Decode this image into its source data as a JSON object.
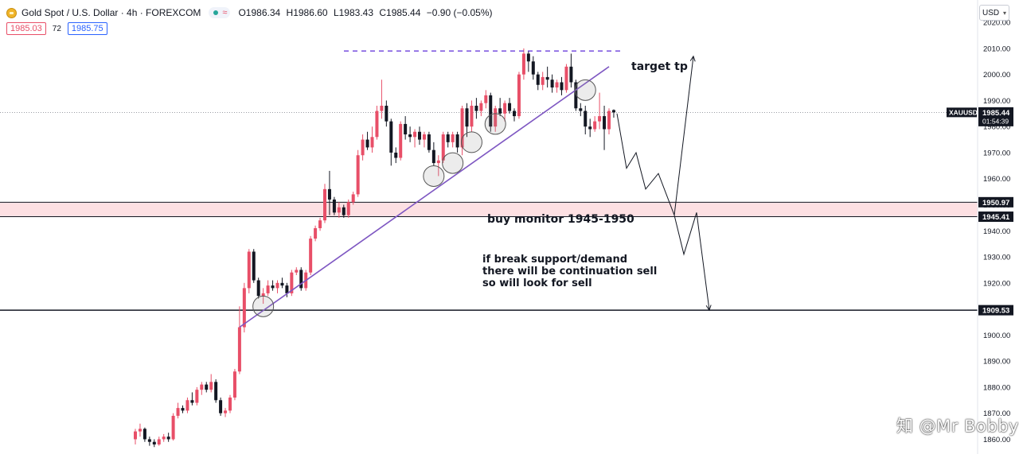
{
  "header": {
    "symbol_title": "Gold Spot / U.S. Dollar · 4h · FOREXCOM",
    "ohlc": {
      "o_label": "O",
      "o": "1986.34",
      "h_label": "H",
      "h": "1986.60",
      "l_label": "L",
      "l": "1983.43",
      "c_label": "C",
      "c": "1985.44",
      "change": "−0.90 (−0.05%)"
    },
    "bid": "1985.03",
    "spread": "72",
    "ask": "1985.75",
    "currency": "USD",
    "icons": [
      "gold-coin-icon",
      "market-status-icon",
      "waves-icon",
      "chevron-down-icon"
    ]
  },
  "colors": {
    "up_candle": "#e84f68",
    "down_candle": "#131722",
    "trendline": "#7e57c2",
    "target_dashed": "#5b2bd8",
    "zone_fill": "#fde0e3",
    "market_open_dot": "#26a69a"
  },
  "watermark": "知 @Mr Bobby",
  "chart_data": {
    "type": "candlestick",
    "symbol": "XAUUSD",
    "timeframe": "4h",
    "ylim": [
      1858,
      2024
    ],
    "y_ticks": [
      1860,
      1870,
      1880,
      1890,
      1900,
      1910,
      1920,
      1930,
      1940,
      1950,
      1960,
      1970,
      1980,
      1990,
      2000,
      2010,
      2020
    ],
    "y_tick_labels": [
      "1860.00",
      "1870.00",
      "1880.00",
      "1890.00",
      "1900.00",
      "1910.00",
      "1920.00",
      "1930.00",
      "1940.00",
      "1950.00",
      "1960.00",
      "1970.00",
      "1980.00",
      "1990.00",
      "2000.00",
      "2010.00",
      "2020.00"
    ],
    "last_price": {
      "label": "XAUUSD",
      "value": 1985.44,
      "value_text": "1985.44",
      "countdown": "01:54:39"
    },
    "candles": [
      [
        1860.0,
        1864.0,
        1858.0,
        1863.0
      ],
      [
        1863.0,
        1866.0,
        1861.0,
        1864.0
      ],
      [
        1864.0,
        1864.5,
        1859.0,
        1860.0
      ],
      [
        1860.0,
        1861.0,
        1857.5,
        1859.0
      ],
      [
        1859.0,
        1860.0,
        1857.0,
        1858.0
      ],
      [
        1858.0,
        1861.0,
        1857.5,
        1860.0
      ],
      [
        1860.0,
        1862.0,
        1859.0,
        1861.0
      ],
      [
        1861.0,
        1862.5,
        1859.0,
        1860.0
      ],
      [
        1860.0,
        1870.0,
        1859.5,
        1869.0
      ],
      [
        1869.0,
        1874.0,
        1868.0,
        1872.0
      ],
      [
        1872.0,
        1873.0,
        1870.0,
        1871.0
      ],
      [
        1871.0,
        1876.0,
        1870.0,
        1875.0
      ],
      [
        1875.0,
        1878.0,
        1873.0,
        1874.0
      ],
      [
        1874.0,
        1880.0,
        1873.0,
        1879.0
      ],
      [
        1879.0,
        1882.0,
        1877.0,
        1881.0
      ],
      [
        1881.0,
        1882.0,
        1878.0,
        1879.0
      ],
      [
        1879.0,
        1885.0,
        1878.0,
        1882.0
      ],
      [
        1882.0,
        1883.0,
        1874.0,
        1875.0
      ],
      [
        1875.0,
        1876.0,
        1869.0,
        1870.0
      ],
      [
        1870.0,
        1872.0,
        1868.5,
        1871.0
      ],
      [
        1871.0,
        1877.0,
        1870.0,
        1876.0
      ],
      [
        1876.0,
        1887.0,
        1875.0,
        1886.0
      ],
      [
        1886.0,
        1911.0,
        1885.0,
        1903.0
      ],
      [
        1903.0,
        1920.0,
        1901.0,
        1918.0
      ],
      [
        1918.0,
        1933.0,
        1916.0,
        1932.0
      ],
      [
        1932.0,
        1933.0,
        1920.0,
        1921.0
      ],
      [
        1921.0,
        1922.0,
        1914.0,
        1915.0
      ],
      [
        1915.0,
        1918.0,
        1912.0,
        1916.0
      ],
      [
        1916.0,
        1921.0,
        1915.0,
        1919.0
      ],
      [
        1919.0,
        1921.0,
        1917.0,
        1918.0
      ],
      [
        1918.0,
        1921.0,
        1916.0,
        1920.0
      ],
      [
        1920.0,
        1922.0,
        1918.0,
        1919.0
      ],
      [
        1919.0,
        1920.0,
        1914.5,
        1916.0
      ],
      [
        1916.0,
        1925.0,
        1915.0,
        1924.0
      ],
      [
        1924.0,
        1926.0,
        1923.0,
        1925.0
      ],
      [
        1925.0,
        1926.0,
        1917.0,
        1918.0
      ],
      [
        1918.0,
        1925.0,
        1917.0,
        1924.0
      ],
      [
        1924.0,
        1938.0,
        1923.0,
        1937.0
      ],
      [
        1937.0,
        1942.0,
        1936.0,
        1941.0
      ],
      [
        1941.0,
        1945.0,
        1940.0,
        1944.0
      ],
      [
        1944.0,
        1958.0,
        1943.0,
        1956.0
      ],
      [
        1956.0,
        1963.0,
        1946.0,
        1952.0
      ],
      [
        1952.0,
        1953.0,
        1946.0,
        1947.0
      ],
      [
        1947.0,
        1951.0,
        1945.0,
        1949.0
      ],
      [
        1949.0,
        1950.0,
        1945.0,
        1946.0
      ],
      [
        1946.0,
        1952.0,
        1945.0,
        1951.0
      ],
      [
        1951.0,
        1955.0,
        1950.0,
        1954.0
      ],
      [
        1954.0,
        1971.0,
        1953.0,
        1969.0
      ],
      [
        1969.0,
        1977.0,
        1967.0,
        1975.0
      ],
      [
        1975.0,
        1978.0,
        1971.0,
        1972.0
      ],
      [
        1972.0,
        1980.0,
        1970.0,
        1976.0
      ],
      [
        1976.0,
        1988.0,
        1975.0,
        1986.0
      ],
      [
        1986.0,
        1998.0,
        1983.0,
        1988.0
      ],
      [
        1988.0,
        1990.0,
        1980.0,
        1982.0
      ],
      [
        1982.0,
        1983.0,
        1965.0,
        1970.0
      ],
      [
        1970.0,
        1972.0,
        1966.0,
        1968.0
      ],
      [
        1968.0,
        1982.0,
        1967.0,
        1981.0
      ],
      [
        1981.0,
        1984.0,
        1975.0,
        1977.0
      ],
      [
        1977.0,
        1980.0,
        1974.0,
        1976.0
      ],
      [
        1976.0,
        1979.0,
        1972.0,
        1978.0
      ],
      [
        1978.0,
        1980.0,
        1973.0,
        1975.0
      ],
      [
        1975.0,
        1978.0,
        1972.0,
        1977.0
      ],
      [
        1977.0,
        1978.0,
        1970.0,
        1971.0
      ],
      [
        1971.0,
        1974.0,
        1965.0,
        1966.0
      ],
      [
        1966.0,
        1969.0,
        1961.0,
        1967.0
      ],
      [
        1967.0,
        1978.0,
        1966.0,
        1977.0
      ],
      [
        1977.0,
        1978.0,
        1972.0,
        1974.0
      ],
      [
        1974.0,
        1978.0,
        1972.0,
        1977.0
      ],
      [
        1977.0,
        1978.0,
        1970.0,
        1972.0
      ],
      [
        1972.0,
        1988.0,
        1969.0,
        1987.0
      ],
      [
        1987.0,
        1989.0,
        1976.0,
        1980.0
      ],
      [
        1980.0,
        1990.0,
        1978.0,
        1988.0
      ],
      [
        1988.0,
        1991.0,
        1983.0,
        1986.0
      ],
      [
        1986.0,
        1990.0,
        1984.0,
        1989.0
      ],
      [
        1989.0,
        1994.0,
        1987.0,
        1992.0
      ],
      [
        1992.0,
        1993.0,
        1978.0,
        1980.0
      ],
      [
        1980.0,
        1988.0,
        1978.0,
        1987.0
      ],
      [
        1987.0,
        1991.0,
        1984.0,
        1985.0
      ],
      [
        1985.0,
        1990.0,
        1982.0,
        1989.0
      ],
      [
        1989.0,
        1991.0,
        1985.0,
        1986.0
      ],
      [
        1986.0,
        1987.0,
        1982.0,
        1984.0
      ],
      [
        1984.0,
        2001.0,
        1983.0,
        2000.0
      ],
      [
        2000.0,
        2010.0,
        1998.0,
        2008.0
      ],
      [
        2008.0,
        2009.0,
        2001.0,
        2005.0
      ],
      [
        2005.0,
        2007.0,
        1998.0,
        2000.0
      ],
      [
        2000.0,
        2001.0,
        1994.0,
        1996.0
      ],
      [
        1996.0,
        2001.0,
        1994.0,
        1999.0
      ],
      [
        1999.0,
        2003.0,
        1995.0,
        1998.0
      ],
      [
        1998.0,
        2000.0,
        1993.0,
        1995.0
      ],
      [
        1995.0,
        1998.0,
        1993.0,
        1997.0
      ],
      [
        1997.0,
        1999.0,
        1992.0,
        1994.0
      ],
      [
        1994.0,
        2004.0,
        1993.0,
        2003.0
      ],
      [
        2003.0,
        2008.0,
        1995.0,
        1997.0
      ],
      [
        1997.0,
        1998.0,
        1986.0,
        1987.0
      ],
      [
        1987.0,
        1989.0,
        1984.0,
        1986.0
      ],
      [
        1986.0,
        1988.0,
        1977.0,
        1980.0
      ],
      [
        1980.0,
        1983.0,
        1976.0,
        1979.0
      ],
      [
        1979.0,
        1984.0,
        1978.0,
        1982.0
      ],
      [
        1982.0,
        1993.0,
        1979.0,
        1984.0
      ],
      [
        1984.0,
        1988.0,
        1971.0,
        1979.0
      ],
      [
        1979.0,
        1987.0,
        1977.0,
        1986.0
      ],
      [
        1986.34,
        1986.6,
        1983.43,
        1985.44
      ]
    ],
    "levels": [
      {
        "value": 1950.97,
        "label": "1950.97"
      },
      {
        "value": 1945.41,
        "label": "1945.41"
      },
      {
        "value": 1909.53,
        "label": "1909.53"
      }
    ],
    "zone": {
      "from": 1945.41,
      "to": 1950.97,
      "label": "buy monitor 1945-1950"
    },
    "target": {
      "value": 2009.0,
      "label": "target tp"
    },
    "annotation": {
      "lines": [
        "if break support/demand",
        "there will be continuation sell",
        "so will look for sell"
      ]
    },
    "trendline": {
      "from_candle": 22,
      "from_price": 1903,
      "to_candle": 100,
      "to_price": 2003
    },
    "touch_circles": [
      {
        "candle": 27,
        "price": 1911
      },
      {
        "candle": 63,
        "price": 1961
      },
      {
        "candle": 67,
        "price": 1966
      },
      {
        "candle": 71,
        "price": 1974
      },
      {
        "candle": 76,
        "price": 1981
      },
      {
        "candle": 95,
        "price": 1994
      }
    ],
    "projection_path": [
      {
        "t": 0,
        "price": 1985
      },
      {
        "t": 3,
        "price": 1964
      },
      {
        "t": 6,
        "price": 1970
      },
      {
        "t": 9,
        "price": 1956
      },
      {
        "t": 13,
        "price": 1962
      },
      {
        "t": 18,
        "price": 1946
      },
      {
        "t": 24,
        "price": 2007
      }
    ],
    "projection_alt_path": [
      {
        "t": 18,
        "price": 1946
      },
      {
        "t": 21,
        "price": 1931
      },
      {
        "t": 25,
        "price": 1947
      },
      {
        "t": 29,
        "price": 1909.53
      }
    ]
  }
}
